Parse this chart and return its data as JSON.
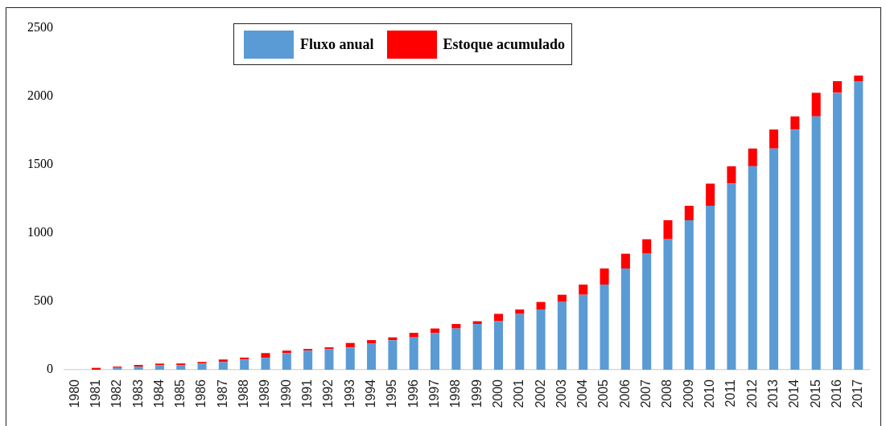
{
  "chart_data": {
    "type": "bar",
    "categories": [
      "1980",
      "1981",
      "1982",
      "1983",
      "1984",
      "1985",
      "1986",
      "1987",
      "1988",
      "1989",
      "1990",
      "1991",
      "1992",
      "1993",
      "1994",
      "1995",
      "1996",
      "1997",
      "1998",
      "1999",
      "2000",
      "2001",
      "2002",
      "2003",
      "2004",
      "2005",
      "2006",
      "2007",
      "2008",
      "2009",
      "2010",
      "2011",
      "2012",
      "2013",
      "2014",
      "2015",
      "2016",
      "2017"
    ],
    "series": [
      {
        "name": "Fluxo anual",
        "color": "#5b9bd5",
        "values": [
          null,
          null,
          14,
          23,
          33,
          34,
          46,
          56,
          75,
          87,
          121,
          140,
          152,
          163,
          194,
          216,
          237,
          270,
          302,
          335,
          355,
          408,
          441,
          496,
          549,
          623,
          741,
          849,
          955,
          1094,
          1200,
          1362,
          1489,
          1619,
          1758,
          1854,
          2027,
          2112
        ]
      },
      {
        "name": "Estoque acumulado",
        "color": "#ff0000",
        "values": [
          null,
          14,
          9,
          12,
          12,
          12,
          11,
          19,
          14,
          35,
          19,
          12,
          12,
          33,
          23,
          21,
          33,
          32,
          33,
          20,
          54,
          33,
          55,
          53,
          74,
          118,
          108,
          106,
          139,
          106,
          162,
          127,
          130,
          139,
          96,
          173,
          85,
          41
        ]
      }
    ],
    "stacked": true,
    "ylim": [
      0,
      2500
    ],
    "yticks": [
      0,
      500,
      1000,
      1500,
      2000,
      2500
    ],
    "legend": "top"
  }
}
